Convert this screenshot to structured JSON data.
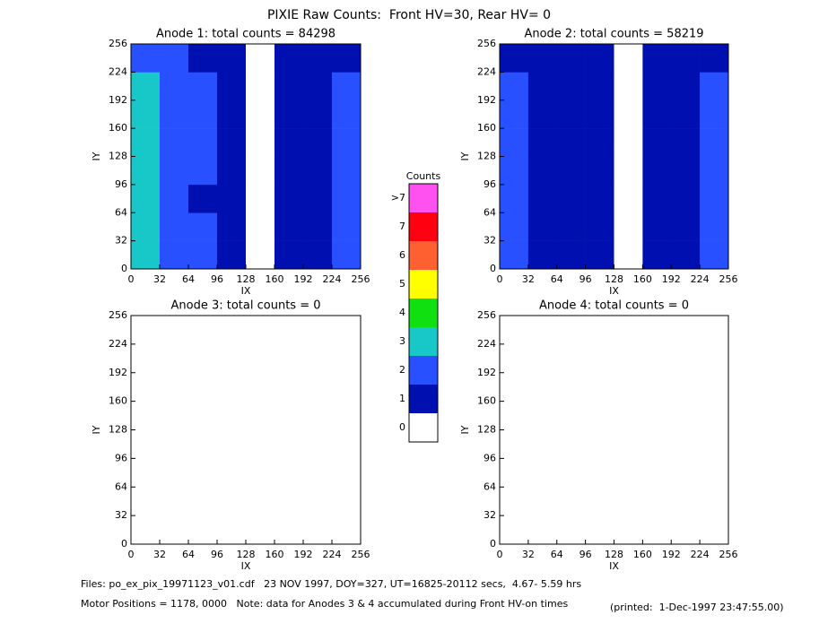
{
  "title": "PIXIE Raw Counts:  Front HV=30, Rear HV= 0",
  "footer": {
    "files": "Files: po_ex_pix_19971123_v01.cdf   23 NOV 1997, DOY=327, UT=16825-20112 secs,  4.67- 5.59 hrs",
    "motor": "Motor Positions = 1178, 0000   Note: data for Anodes 3 & 4 accumulated during Front HV-on times",
    "printed": "(printed:  1-Dec-1997 23:47:55.00)"
  },
  "colorbar": {
    "title": "Counts",
    "labels": [
      "0",
      "1",
      "2",
      "3",
      "4",
      "5",
      "6",
      "7",
      ">7"
    ],
    "colors": [
      "#ffffff",
      "#0010b0",
      "#2850ff",
      "#18c8c8",
      "#10e010",
      "#ffff00",
      "#ff6030",
      "#ff0010",
      "#ff50f0"
    ]
  },
  "chart_data": [
    {
      "type": "heatmap",
      "title": "Anode 1: total counts = 84298",
      "xlabel": "IX",
      "ylabel": "IY",
      "xlim": [
        0,
        256
      ],
      "ylim": [
        0,
        256
      ],
      "xticks": [
        0,
        32,
        64,
        96,
        128,
        160,
        192,
        224,
        256
      ],
      "yticks": [
        0,
        32,
        64,
        96,
        128,
        160,
        192,
        224,
        256
      ],
      "values": [
        [
          3,
          2,
          2,
          1,
          0.5,
          1.5,
          1.5,
          2
        ],
        [
          3,
          2,
          2,
          1,
          0.5,
          1,
          1.5,
          2
        ],
        [
          3,
          2,
          1.5,
          1,
          0.5,
          1.5,
          1,
          2
        ],
        [
          3,
          2,
          2,
          1,
          0.5,
          1.5,
          1.5,
          2
        ],
        [
          3,
          2,
          2,
          1,
          0.5,
          1.5,
          1.5,
          2
        ],
        [
          3,
          2,
          2,
          1,
          0.5,
          1.5,
          1,
          2
        ],
        [
          3,
          2,
          2,
          1,
          0.5,
          1.5,
          1.5,
          2
        ],
        [
          2,
          2,
          1.5,
          1,
          0.5,
          1,
          1,
          1.5
        ]
      ]
    },
    {
      "type": "heatmap",
      "title": "Anode 2: total counts = 58219",
      "xlabel": "IX",
      "ylabel": "IY",
      "xlim": [
        0,
        256
      ],
      "ylim": [
        0,
        256
      ],
      "xticks": [
        0,
        32,
        64,
        96,
        128,
        160,
        192,
        224,
        256
      ],
      "yticks": [
        0,
        32,
        64,
        96,
        128,
        160,
        192,
        224,
        256
      ],
      "values": [
        [
          2,
          1.5,
          1,
          1,
          0.5,
          1,
          1,
          2
        ],
        [
          2,
          1.5,
          1,
          1,
          0.5,
          1,
          1,
          2
        ],
        [
          2,
          1,
          1.5,
          1,
          0.5,
          1,
          1.5,
          2
        ],
        [
          2,
          1.5,
          1,
          1,
          0.5,
          1,
          1,
          2
        ],
        [
          2,
          1.5,
          1.5,
          1,
          0.5,
          1,
          1,
          2
        ],
        [
          2,
          1.5,
          1,
          1,
          0.5,
          1,
          1.5,
          2
        ],
        [
          2,
          1.5,
          1.5,
          1,
          0.5,
          1,
          1,
          2
        ],
        [
          1.5,
          1.5,
          1,
          1,
          0.5,
          1,
          1,
          1.5
        ]
      ]
    },
    {
      "type": "heatmap",
      "title": "Anode 3: total counts = 0",
      "xlabel": "IX",
      "ylabel": "IY",
      "xlim": [
        0,
        256
      ],
      "ylim": [
        0,
        256
      ],
      "xticks": [
        0,
        32,
        64,
        96,
        128,
        160,
        192,
        224,
        256
      ],
      "yticks": [
        0,
        32,
        64,
        96,
        128,
        160,
        192,
        224,
        256
      ],
      "values": [
        [
          0,
          0,
          0,
          0
        ],
        [
          0,
          0,
          0,
          0
        ],
        [
          0,
          0,
          0,
          0
        ],
        [
          0,
          0,
          0,
          0
        ]
      ]
    },
    {
      "type": "heatmap",
      "title": "Anode 4: total counts = 0",
      "xlabel": "IX",
      "ylabel": "IY",
      "xlim": [
        0,
        256
      ],
      "ylim": [
        0,
        256
      ],
      "xticks": [
        0,
        32,
        64,
        96,
        128,
        160,
        192,
        224,
        256
      ],
      "yticks": [
        0,
        32,
        64,
        96,
        128,
        160,
        192,
        224,
        256
      ],
      "values": [
        [
          0,
          0,
          0,
          0
        ],
        [
          0,
          0,
          0,
          0
        ],
        [
          0,
          0,
          0,
          0
        ],
        [
          0,
          0,
          0,
          0
        ]
      ]
    }
  ]
}
